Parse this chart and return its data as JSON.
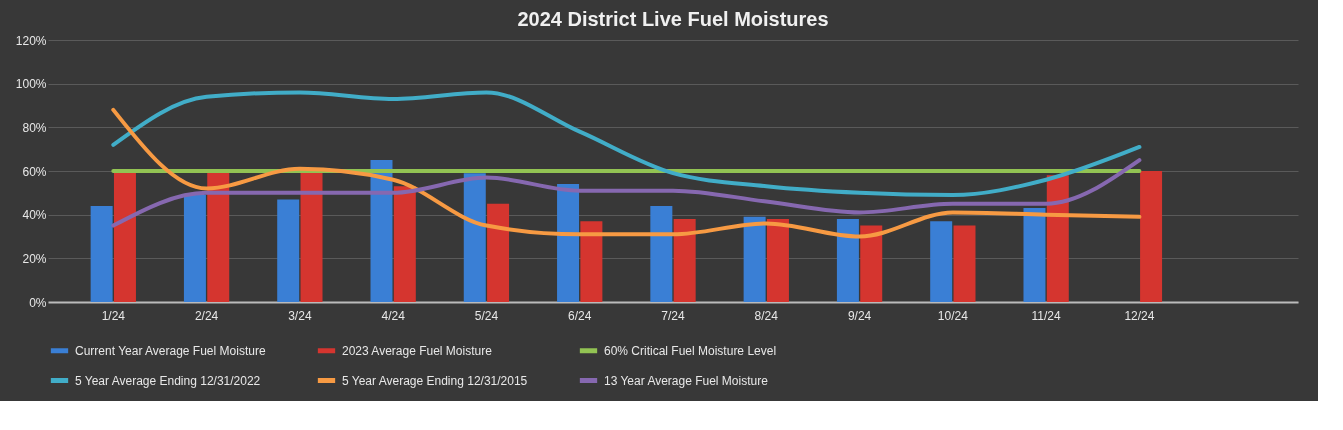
{
  "chart_data": {
    "type": "bar",
    "title": "2024 District Live Fuel Moistures",
    "categories": [
      "1/24",
      "2/24",
      "3/24",
      "4/24",
      "5/24",
      "6/24",
      "7/24",
      "8/24",
      "9/24",
      "10/24",
      "11/24",
      "12/24",
      null
    ],
    "series": [
      {
        "name": "Current Year Average Fuel Moisture",
        "color": "#3a7fd5",
        "values": [
          44,
          49,
          47,
          65,
          59,
          54,
          44,
          39,
          38,
          37,
          43,
          null,
          null
        ]
      },
      {
        "name": "2023 Average Fuel Moisture",
        "color": "#d5352f",
        "values": [
          60,
          60,
          60,
          53,
          45,
          37,
          38,
          38,
          35,
          35,
          58,
          60,
          null
        ]
      },
      {
        "name": "60% Critical Fuel Moisture Level",
        "type": "line",
        "color": "#92c353",
        "values": [
          60,
          60,
          60,
          60,
          60,
          60,
          60,
          60,
          60,
          60,
          60,
          60,
          null
        ]
      },
      {
        "name": "5 Year Average Ending 12/31/2022",
        "type": "line",
        "color": "#41adc8",
        "values": [
          72,
          94,
          96,
          93,
          96,
          78,
          59,
          53,
          50,
          49,
          56,
          71,
          null
        ]
      },
      {
        "name": "5 Year Average Ending 12/31/2015",
        "type": "line",
        "color": "#f79a43",
        "values": [
          88,
          52,
          61,
          56,
          35,
          31,
          31,
          36,
          30,
          41,
          40,
          39,
          null
        ]
      },
      {
        "name": "13 Year Average Fuel Moisture",
        "type": "line",
        "color": "#8668b0",
        "values": [
          35,
          50,
          50,
          50,
          57,
          51,
          51,
          46,
          41,
          45,
          45,
          65,
          null
        ]
      }
    ],
    "ylim": [
      0,
      120
    ],
    "yticks": [
      {
        "value": 0,
        "label": "0%"
      },
      {
        "value": 20,
        "label": "20%"
      },
      {
        "value": 40,
        "label": "40%"
      },
      {
        "value": 60,
        "label": "60%"
      },
      {
        "value": 80,
        "label": "80%"
      },
      {
        "value": 100,
        "label": "100%"
      },
      {
        "value": 120,
        "label": "120%"
      }
    ],
    "grid": "y",
    "legend": "bottom"
  }
}
